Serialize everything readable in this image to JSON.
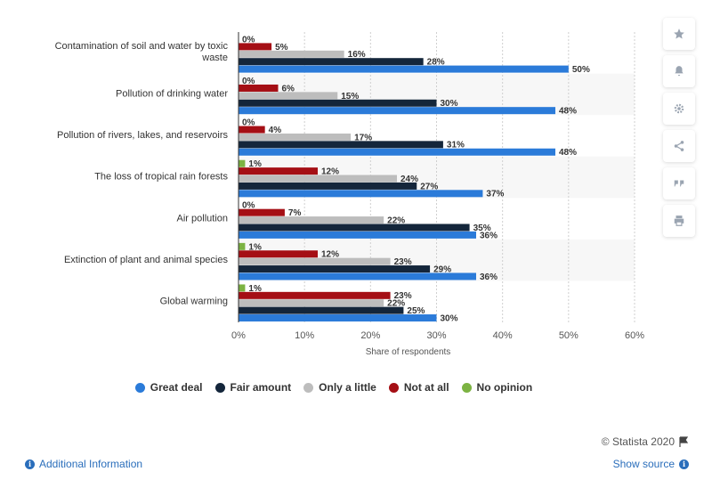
{
  "chart_data": {
    "type": "bar",
    "orientation": "horizontal",
    "categories": [
      "Contamination of soil and water by toxic waste",
      "Pollution of drinking water",
      "Pollution of rivers, lakes, and reservoirs",
      "The loss of tropical rain forests",
      "Air pollution",
      "Extinction of plant and animal species",
      "Global warming"
    ],
    "category_lines": [
      [
        "Contamination of soil and water by toxic",
        "waste"
      ],
      [
        "Pollution of drinking water"
      ],
      [
        "Pollution of rivers, lakes, and reservoirs"
      ],
      [
        "The loss of tropical rain forests"
      ],
      [
        "Air pollution"
      ],
      [
        "Extinction of plant and animal species"
      ],
      [
        "Global warming"
      ]
    ],
    "series": [
      {
        "name": "No opinion",
        "color": "#7cb342",
        "values": [
          0,
          0,
          0,
          1,
          0,
          1,
          1
        ]
      },
      {
        "name": "Not at all",
        "color": "#a50f15",
        "values": [
          5,
          6,
          4,
          12,
          7,
          12,
          23
        ]
      },
      {
        "name": "Only a little",
        "color": "#bdbdbd",
        "values": [
          16,
          15,
          17,
          24,
          22,
          23,
          22
        ]
      },
      {
        "name": "Fair amount",
        "color": "#14263b",
        "values": [
          28,
          30,
          31,
          27,
          35,
          29,
          25
        ]
      },
      {
        "name": "Great deal",
        "color": "#2b7bd9",
        "values": [
          50,
          48,
          48,
          37,
          36,
          36,
          30
        ]
      }
    ],
    "legend_order": [
      "Great deal",
      "Fair amount",
      "Only a little",
      "Not at all",
      "No opinion"
    ],
    "value_suffix": "%",
    "xlim": [
      0,
      60
    ],
    "x_ticks": [
      "0%",
      "10%",
      "20%",
      "30%",
      "40%",
      "50%",
      "60%"
    ],
    "xlabel": "Share of respondents",
    "ylabel": "",
    "grid": true,
    "legend_position": "bottom"
  },
  "footer": {
    "copyright": "© Statista 2020",
    "additional_info": "Additional Information",
    "show_source": "Show source"
  },
  "tools": [
    "star-icon",
    "bell-icon",
    "gear-icon",
    "share-icon",
    "quote-icon",
    "print-icon"
  ]
}
